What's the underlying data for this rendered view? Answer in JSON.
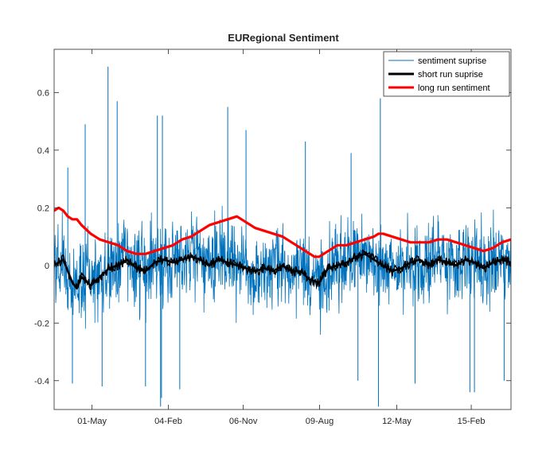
{
  "chart_data": {
    "type": "line",
    "title": "EURegional  Sentiment",
    "xlabel": "",
    "ylabel": "",
    "xlim": [
      0,
      100
    ],
    "ylim": [
      -0.5,
      0.75
    ],
    "x_ticks": [
      {
        "pos": 8.3,
        "label": "01-May"
      },
      {
        "pos": 25.0,
        "label": "04-Feb"
      },
      {
        "pos": 41.4,
        "label": "06-Nov"
      },
      {
        "pos": 58.1,
        "label": "09-Aug"
      },
      {
        "pos": 75.0,
        "label": "12-May"
      },
      {
        "pos": 91.3,
        "label": "15-Feb"
      }
    ],
    "y_ticks": [
      {
        "value": -0.4,
        "label": "-0.4"
      },
      {
        "value": -0.2,
        "label": "-0.2"
      },
      {
        "value": 0,
        "label": "0"
      },
      {
        "value": 0.2,
        "label": "0.2"
      },
      {
        "value": 0.4,
        "label": "0.4"
      },
      {
        "value": 0.6,
        "label": "0.6"
      }
    ],
    "grid": false,
    "legend": {
      "position": "top-right",
      "entries": [
        "sentiment suprise",
        "short run suprise",
        "long run sentiment"
      ]
    },
    "series": [
      {
        "name": "sentiment suprise",
        "color": "#0072BD",
        "style": "noisy-band",
        "approx_band_lower": -0.2,
        "approx_band_upper": 0.2,
        "spikes": [
          {
            "x": 6.8,
            "y": 0.49
          },
          {
            "x": 11.8,
            "y": 0.69
          },
          {
            "x": 13.8,
            "y": 0.57
          },
          {
            "x": 22.6,
            "y": 0.52
          },
          {
            "x": 23.3,
            "y": -0.49
          },
          {
            "x": 23.7,
            "y": 0.52
          },
          {
            "x": 23.5,
            "y": -0.46
          },
          {
            "x": 38.0,
            "y": 0.55
          },
          {
            "x": 42.0,
            "y": 0.47
          },
          {
            "x": 55.0,
            "y": 0.43
          },
          {
            "x": 65.0,
            "y": 0.39
          },
          {
            "x": 71.4,
            "y": 0.58
          },
          {
            "x": 71.0,
            "y": -0.49
          },
          {
            "x": 91.0,
            "y": -0.44
          },
          {
            "x": 92.0,
            "y": -0.44
          },
          {
            "x": 98.5,
            "y": -0.4
          },
          {
            "x": 4.0,
            "y": -0.41
          },
          {
            "x": 10.5,
            "y": -0.42
          },
          {
            "x": 20.0,
            "y": -0.42
          },
          {
            "x": 27.5,
            "y": -0.43
          },
          {
            "x": 66.5,
            "y": -0.4
          },
          {
            "x": 79.0,
            "y": -0.41
          },
          {
            "x": 3.0,
            "y": 0.34
          }
        ]
      },
      {
        "name": "short run suprise",
        "color": "#000000",
        "points": [
          [
            0,
            0.0
          ],
          [
            2,
            0.02
          ],
          [
            4,
            -0.06
          ],
          [
            5,
            -0.08
          ],
          [
            6,
            -0.04
          ],
          [
            8,
            -0.07
          ],
          [
            10,
            -0.04
          ],
          [
            12,
            -0.01
          ],
          [
            14,
            0.0
          ],
          [
            16,
            0.02
          ],
          [
            18,
            -0.01
          ],
          [
            20,
            -0.02
          ],
          [
            22,
            0.01
          ],
          [
            24,
            0.02
          ],
          [
            26,
            0.01
          ],
          [
            28,
            0.02
          ],
          [
            30,
            0.03
          ],
          [
            32,
            0.02
          ],
          [
            34,
            0.0
          ],
          [
            36,
            0.02
          ],
          [
            38,
            0.01
          ],
          [
            40,
            0.0
          ],
          [
            42,
            -0.01
          ],
          [
            44,
            -0.02
          ],
          [
            46,
            -0.01
          ],
          [
            48,
            -0.02
          ],
          [
            50,
            0.0
          ],
          [
            52,
            -0.02
          ],
          [
            54,
            -0.02
          ],
          [
            56,
            -0.05
          ],
          [
            58,
            -0.06
          ],
          [
            60,
            -0.01
          ],
          [
            62,
            0.0
          ],
          [
            64,
            0.01
          ],
          [
            66,
            0.03
          ],
          [
            68,
            0.04
          ],
          [
            70,
            0.02
          ],
          [
            72,
            0.0
          ],
          [
            74,
            -0.02
          ],
          [
            76,
            -0.01
          ],
          [
            78,
            0.01
          ],
          [
            80,
            0.02
          ],
          [
            82,
            0.0
          ],
          [
            84,
            0.02
          ],
          [
            86,
            0.01
          ],
          [
            88,
            0.0
          ],
          [
            90,
            0.02
          ],
          [
            92,
            0.01
          ],
          [
            94,
            -0.01
          ],
          [
            96,
            0.01
          ],
          [
            98,
            0.02
          ],
          [
            100,
            0.01
          ]
        ]
      },
      {
        "name": "long run sentiment",
        "color": "#FF0000",
        "points": [
          [
            0,
            0.19
          ],
          [
            1,
            0.2
          ],
          [
            2,
            0.19
          ],
          [
            3,
            0.17
          ],
          [
            4,
            0.16
          ],
          [
            5,
            0.16
          ],
          [
            6,
            0.14
          ],
          [
            8,
            0.11
          ],
          [
            10,
            0.09
          ],
          [
            12,
            0.08
          ],
          [
            14,
            0.07
          ],
          [
            16,
            0.05
          ],
          [
            18,
            0.04
          ],
          [
            20,
            0.04
          ],
          [
            22,
            0.05
          ],
          [
            24,
            0.06
          ],
          [
            26,
            0.07
          ],
          [
            28,
            0.09
          ],
          [
            30,
            0.1
          ],
          [
            32,
            0.12
          ],
          [
            34,
            0.14
          ],
          [
            36,
            0.15
          ],
          [
            38,
            0.16
          ],
          [
            40,
            0.17
          ],
          [
            42,
            0.15
          ],
          [
            44,
            0.13
          ],
          [
            46,
            0.12
          ],
          [
            48,
            0.11
          ],
          [
            50,
            0.1
          ],
          [
            52,
            0.08
          ],
          [
            54,
            0.06
          ],
          [
            56,
            0.04
          ],
          [
            57,
            0.03
          ],
          [
            58,
            0.03
          ],
          [
            60,
            0.05
          ],
          [
            62,
            0.07
          ],
          [
            64,
            0.07
          ],
          [
            66,
            0.08
          ],
          [
            68,
            0.09
          ],
          [
            70,
            0.1
          ],
          [
            71,
            0.11
          ],
          [
            72,
            0.11
          ],
          [
            74,
            0.1
          ],
          [
            76,
            0.09
          ],
          [
            78,
            0.08
          ],
          [
            80,
            0.08
          ],
          [
            82,
            0.08
          ],
          [
            84,
            0.09
          ],
          [
            86,
            0.09
          ],
          [
            88,
            0.08
          ],
          [
            90,
            0.07
          ],
          [
            92,
            0.06
          ],
          [
            94,
            0.05
          ],
          [
            96,
            0.06
          ],
          [
            98,
            0.08
          ],
          [
            100,
            0.09
          ]
        ]
      }
    ]
  }
}
